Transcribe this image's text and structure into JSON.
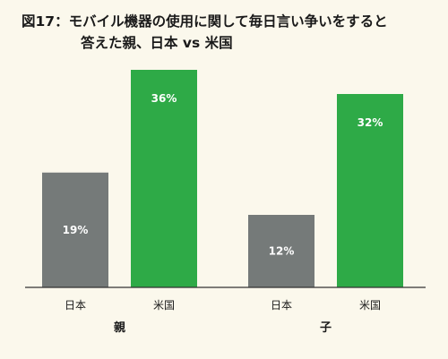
{
  "title": {
    "line1": "図17：モバイル機器の使用に関して毎日言い争いをすると",
    "line2": "答えた親、日本 vs 米国"
  },
  "colors": {
    "japan": "#757a79",
    "us": "#2eaa47",
    "background": "#fbf8ec",
    "axis": "#333333"
  },
  "chart_data": {
    "type": "bar",
    "title": "図17：モバイル機器の使用に関して毎日言い争いをすると答えた親、日本 vs 米国",
    "groups": [
      {
        "name": "親",
        "bars": [
          {
            "category": "日本",
            "value": 19,
            "label": "19%"
          },
          {
            "category": "米国",
            "value": 36,
            "label": "36%"
          }
        ]
      },
      {
        "name": "子",
        "bars": [
          {
            "category": "日本",
            "value": 12,
            "label": "12%"
          },
          {
            "category": "米国",
            "value": 32,
            "label": "32%"
          }
        ]
      }
    ],
    "unit": "%",
    "ylim": [
      0,
      40
    ],
    "grid": false,
    "legend": "none"
  }
}
